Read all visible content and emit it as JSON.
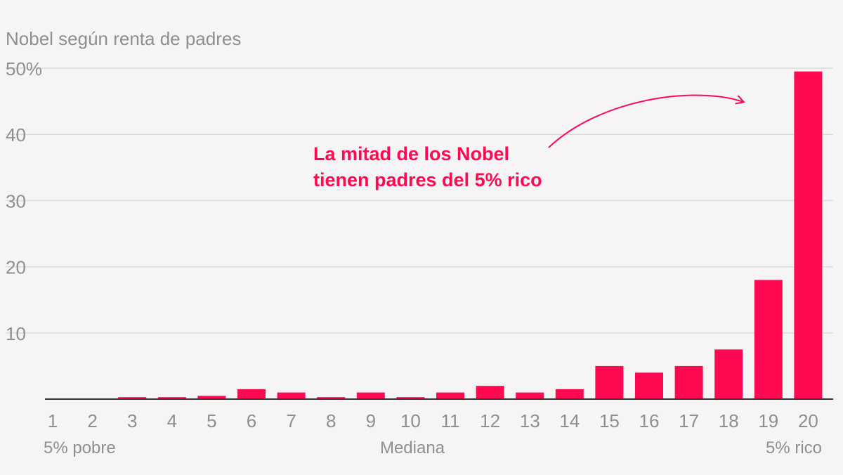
{
  "chart_data": {
    "type": "bar",
    "title": "Nobel según renta de padres",
    "categories": [
      "1",
      "2",
      "3",
      "4",
      "5",
      "6",
      "7",
      "8",
      "9",
      "10",
      "11",
      "12",
      "13",
      "14",
      "15",
      "16",
      "17",
      "18",
      "19",
      "20"
    ],
    "values": [
      0,
      0,
      0.3,
      0.3,
      0.5,
      1.5,
      1.0,
      0.3,
      1.0,
      0.3,
      1.0,
      2.0,
      1.0,
      1.5,
      5.0,
      4.0,
      5.0,
      7.5,
      18.0,
      49.5
    ],
    "ylim": [
      0,
      50
    ],
    "yticks": [
      10,
      20,
      30,
      40,
      50
    ],
    "ytick_labels": [
      "10",
      "20",
      "30",
      "40",
      "50%"
    ],
    "x_sublabels": {
      "left": "5% pobre",
      "middle": "Mediana",
      "right": "5% rico"
    },
    "annotation": {
      "lines": [
        "La mitad de los Nobel",
        "tienen padres del 5% rico"
      ]
    },
    "bar_color": "#ff0a50",
    "grid": true
  }
}
